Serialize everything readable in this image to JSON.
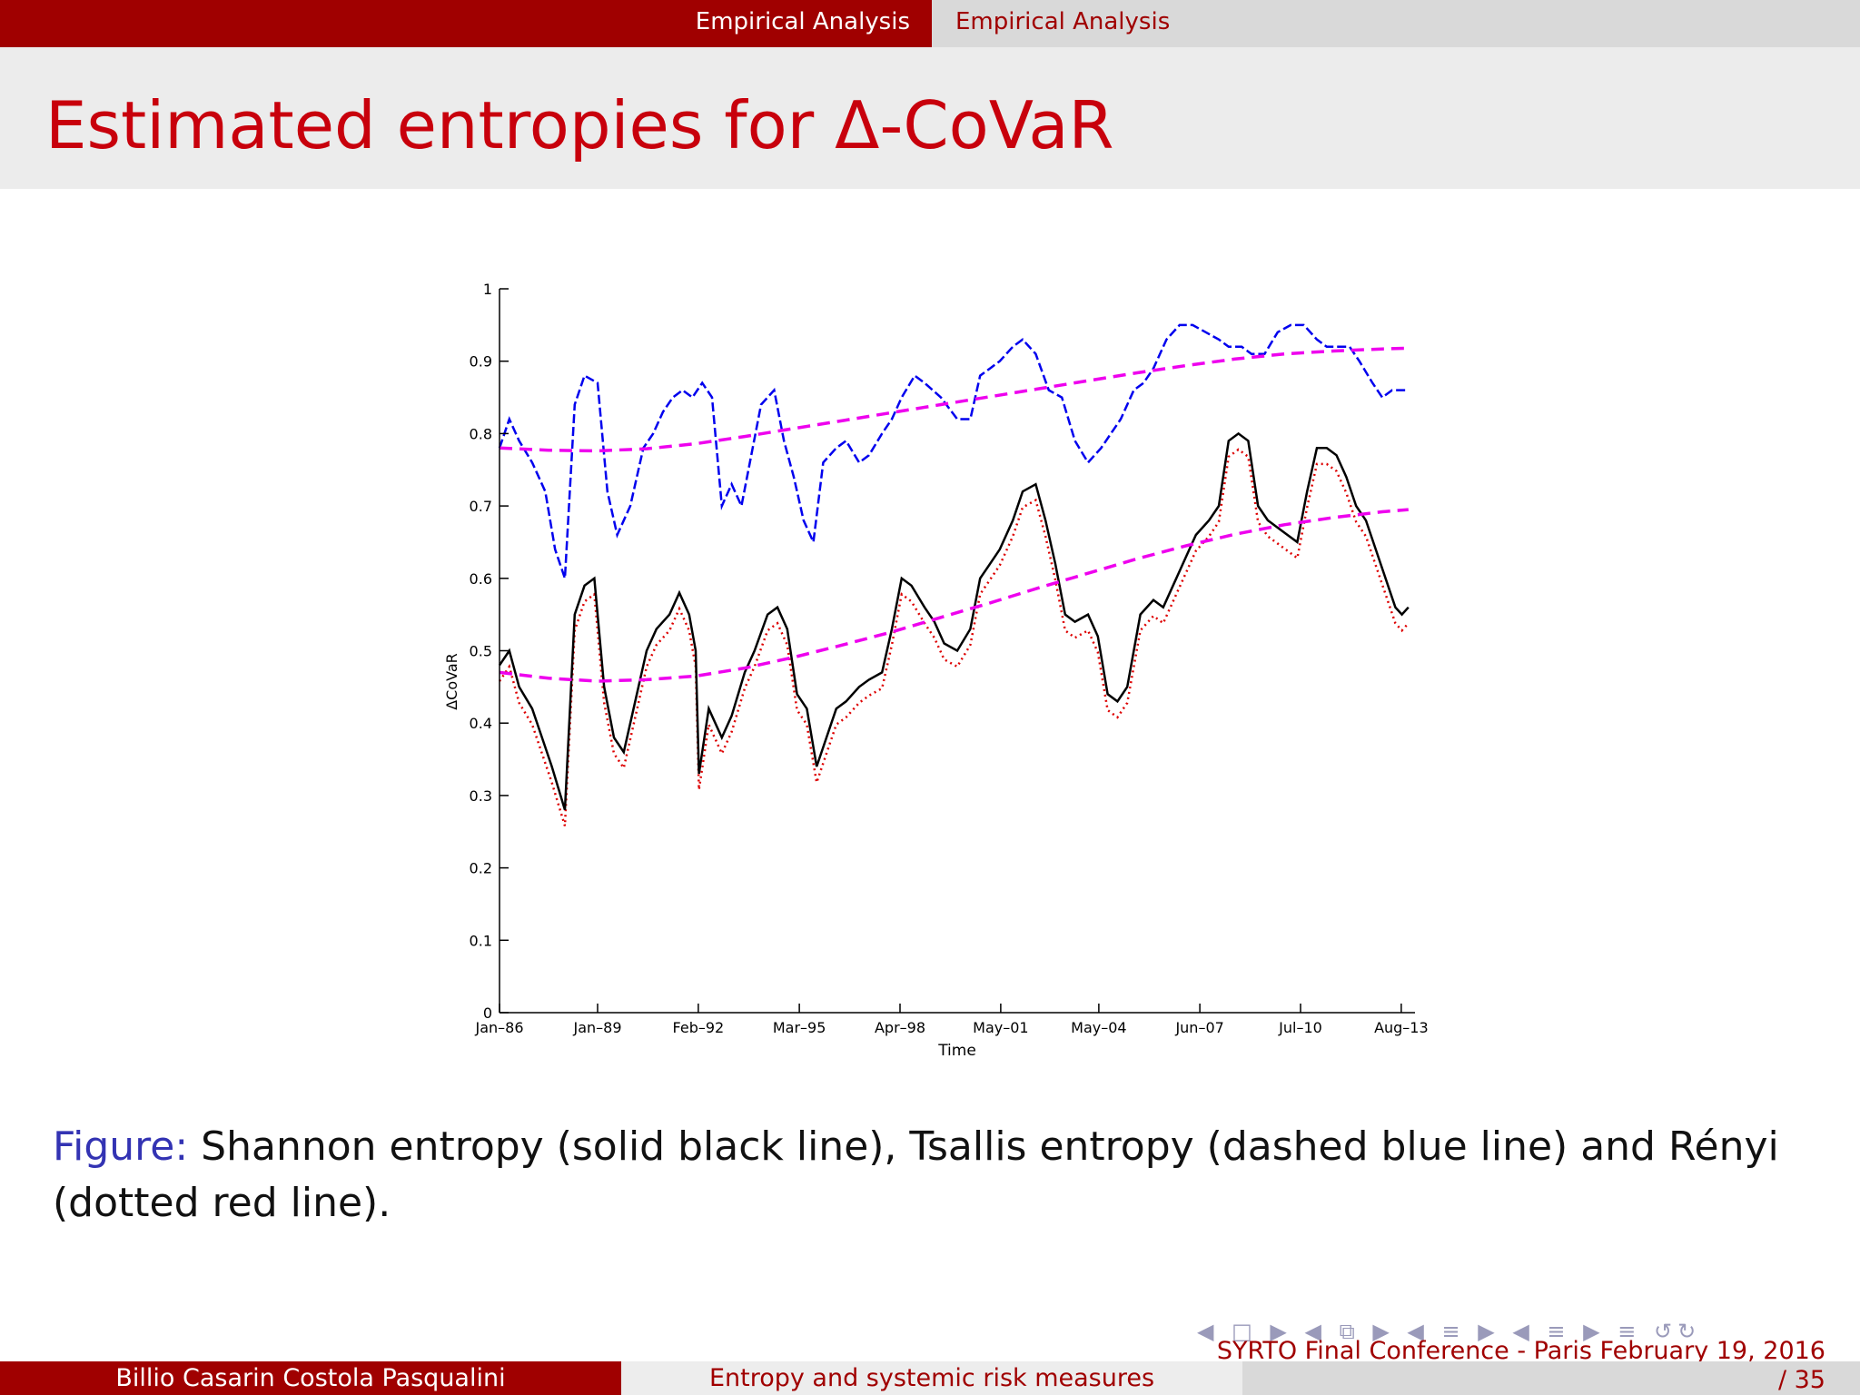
{
  "header": {
    "section_left": "Empirical Analysis",
    "section_right": "Empirical Analysis"
  },
  "slide": {
    "title": "Estimated entropies for Δ-CoVaR"
  },
  "caption": {
    "label": "Figure:",
    "text": " Shannon entropy (solid black line), Tsallis entropy (dashed blue line) and Rényi (dotted red line)."
  },
  "footer": {
    "authors": "Billio Casarin Costola Pasqualini",
    "talk": "Entropy and systemic risk measures",
    "conference": "SYRTO Final Conference - Paris February 19, 2016",
    "page": "/ 35"
  },
  "nav": {
    "icons": "◀ □ ▶ ◀ ⧉ ▶ ◀ ≡ ▶ ◀ ≡ ▶ ≡ ↺↻"
  },
  "chart_data": {
    "type": "line",
    "xlabel": "Time",
    "ylabel": "ΔCoVaR",
    "ylim": [
      0,
      1
    ],
    "yticks": [
      0,
      0.1,
      0.2,
      0.3,
      0.4,
      0.5,
      0.6,
      0.7,
      0.8,
      0.9,
      1
    ],
    "ytick_labels": [
      "0",
      "0.1",
      "0.2",
      "0.3",
      "0.4",
      "0.5",
      "0.6",
      "0.7",
      "0.8",
      "0.9",
      "1"
    ],
    "xlim": [
      1986.0,
      2014.0
    ],
    "xticks": [
      1986.0,
      1989.0,
      1992.08,
      1995.17,
      1998.25,
      2001.33,
      2004.33,
      2007.42,
      2010.5,
      2013.58
    ],
    "xtick_labels": [
      "Jan–86",
      "Jan–89",
      "Feb–92",
      "Mar–95",
      "Apr–98",
      "May–01",
      "May–04",
      "Jun–07",
      "Jul–10",
      "Aug–13"
    ],
    "grid": false,
    "colors": {
      "tsallis": "#0000ee",
      "shannon": "#000000",
      "renyi": "#dd0000",
      "trend": "#ee00ee"
    },
    "series": [
      {
        "key": "tsallis",
        "x": [
          1986.0,
          1986.3,
          1986.6,
          1987.0,
          1987.4,
          1987.7,
          1988.0,
          1988.3,
          1988.6,
          1989.0,
          1989.3,
          1989.6,
          1990.0,
          1990.4,
          1990.7,
          1991.0,
          1991.3,
          1991.6,
          1991.9,
          1992.2,
          1992.5,
          1992.8,
          1993.1,
          1993.4,
          1993.7,
          1994.0,
          1994.4,
          1994.7,
          1995.0,
          1995.3,
          1995.6,
          1995.9,
          1996.3,
          1996.6,
          1997.0,
          1997.3,
          1997.7,
          1998.0,
          1998.3,
          1998.7,
          1999.0,
          1999.5,
          2000.0,
          2000.4,
          2000.7,
          2001.0,
          2001.3,
          2001.7,
          2002.0,
          2002.4,
          2002.8,
          2003.2,
          2003.6,
          2004.0,
          2004.4,
          2004.7,
          2005.0,
          2005.4,
          2005.7,
          2006.0,
          2006.4,
          2006.8,
          2007.2,
          2007.6,
          2008.0,
          2008.3,
          2008.7,
          2009.0,
          2009.4,
          2009.8,
          2010.2,
          2010.6,
          2011.0,
          2011.3,
          2011.7,
          2012.0,
          2012.3,
          2012.7,
          2013.0,
          2013.3,
          2013.6,
          2013.8
        ],
        "y": [
          0.78,
          0.82,
          0.79,
          0.76,
          0.72,
          0.64,
          0.6,
          0.84,
          0.88,
          0.87,
          0.72,
          0.66,
          0.7,
          0.78,
          0.8,
          0.83,
          0.85,
          0.86,
          0.85,
          0.87,
          0.85,
          0.7,
          0.73,
          0.7,
          0.77,
          0.84,
          0.86,
          0.79,
          0.74,
          0.68,
          0.65,
          0.76,
          0.78,
          0.79,
          0.76,
          0.77,
          0.8,
          0.82,
          0.85,
          0.88,
          0.87,
          0.85,
          0.82,
          0.82,
          0.88,
          0.89,
          0.9,
          0.92,
          0.93,
          0.91,
          0.86,
          0.85,
          0.79,
          0.76,
          0.78,
          0.8,
          0.82,
          0.86,
          0.87,
          0.89,
          0.93,
          0.95,
          0.95,
          0.94,
          0.93,
          0.92,
          0.92,
          0.91,
          0.91,
          0.94,
          0.95,
          0.95,
          0.93,
          0.92,
          0.92,
          0.92,
          0.9,
          0.87,
          0.85,
          0.86,
          0.86,
          0.86
        ]
      },
      {
        "key": "shannon",
        "x": [
          1986.0,
          1986.3,
          1986.6,
          1987.0,
          1987.3,
          1987.6,
          1987.8,
          1988.0,
          1988.3,
          1988.6,
          1988.9,
          1989.2,
          1989.5,
          1989.8,
          1990.2,
          1990.5,
          1990.8,
          1991.2,
          1991.5,
          1991.8,
          1992.0,
          1992.1,
          1992.4,
          1992.8,
          1993.1,
          1993.5,
          1993.8,
          1994.2,
          1994.5,
          1994.8,
          1995.1,
          1995.4,
          1995.7,
          1996.0,
          1996.3,
          1996.6,
          1997.0,
          1997.3,
          1997.7,
          1998.0,
          1998.3,
          1998.6,
          1999.0,
          1999.3,
          1999.6,
          2000.0,
          2000.4,
          2000.7,
          2001.0,
          2001.3,
          2001.7,
          2002.0,
          2002.4,
          2002.7,
          2003.0,
          2003.3,
          2003.6,
          2004.0,
          2004.3,
          2004.6,
          2004.9,
          2005.2,
          2005.6,
          2006.0,
          2006.3,
          2006.7,
          2007.0,
          2007.3,
          2007.7,
          2008.0,
          2008.3,
          2008.6,
          2008.9,
          2009.2,
          2009.5,
          2009.8,
          2010.1,
          2010.4,
          2010.7,
          2011.0,
          2011.3,
          2011.6,
          2011.9,
          2012.2,
          2012.5,
          2012.8,
          2013.1,
          2013.4,
          2013.6,
          2013.8
        ],
        "y": [
          0.48,
          0.5,
          0.45,
          0.42,
          0.38,
          0.34,
          0.31,
          0.28,
          0.55,
          0.59,
          0.6,
          0.45,
          0.38,
          0.36,
          0.44,
          0.5,
          0.53,
          0.55,
          0.58,
          0.55,
          0.5,
          0.33,
          0.42,
          0.38,
          0.41,
          0.47,
          0.5,
          0.55,
          0.56,
          0.53,
          0.44,
          0.42,
          0.34,
          0.38,
          0.42,
          0.43,
          0.45,
          0.46,
          0.47,
          0.53,
          0.6,
          0.59,
          0.56,
          0.54,
          0.51,
          0.5,
          0.53,
          0.6,
          0.62,
          0.64,
          0.68,
          0.72,
          0.73,
          0.68,
          0.62,
          0.55,
          0.54,
          0.55,
          0.52,
          0.44,
          0.43,
          0.45,
          0.55,
          0.57,
          0.56,
          0.6,
          0.63,
          0.66,
          0.68,
          0.7,
          0.79,
          0.8,
          0.79,
          0.7,
          0.68,
          0.67,
          0.66,
          0.65,
          0.72,
          0.78,
          0.78,
          0.77,
          0.74,
          0.7,
          0.68,
          0.64,
          0.6,
          0.56,
          0.55,
          0.56
        ]
      },
      {
        "key": "tsallis_trend",
        "x": [
          1986.0,
          1987.5,
          1989.0,
          1990.5,
          1992.0,
          1993.5,
          1995.0,
          1996.5,
          1998.0,
          1999.5,
          2001.0,
          2002.5,
          2004.0,
          2005.5,
          2007.0,
          2008.5,
          2010.0,
          2011.5,
          2013.0,
          2013.8
        ],
        "y": [
          0.78,
          0.777,
          0.776,
          0.779,
          0.786,
          0.796,
          0.807,
          0.818,
          0.829,
          0.84,
          0.851,
          0.862,
          0.873,
          0.884,
          0.894,
          0.903,
          0.91,
          0.914,
          0.917,
          0.918
        ]
      },
      {
        "key": "shannon_trend",
        "x": [
          1986.0,
          1987.5,
          1989.0,
          1990.5,
          1992.0,
          1993.5,
          1995.0,
          1996.5,
          1998.0,
          1999.5,
          2001.0,
          2002.5,
          2004.0,
          2005.5,
          2007.0,
          2008.5,
          2010.0,
          2011.5,
          2013.0,
          2013.8
        ],
        "y": [
          0.47,
          0.462,
          0.458,
          0.46,
          0.465,
          0.476,
          0.491,
          0.508,
          0.526,
          0.546,
          0.566,
          0.587,
          0.607,
          0.627,
          0.645,
          0.661,
          0.674,
          0.684,
          0.692,
          0.695
        ]
      }
    ]
  }
}
